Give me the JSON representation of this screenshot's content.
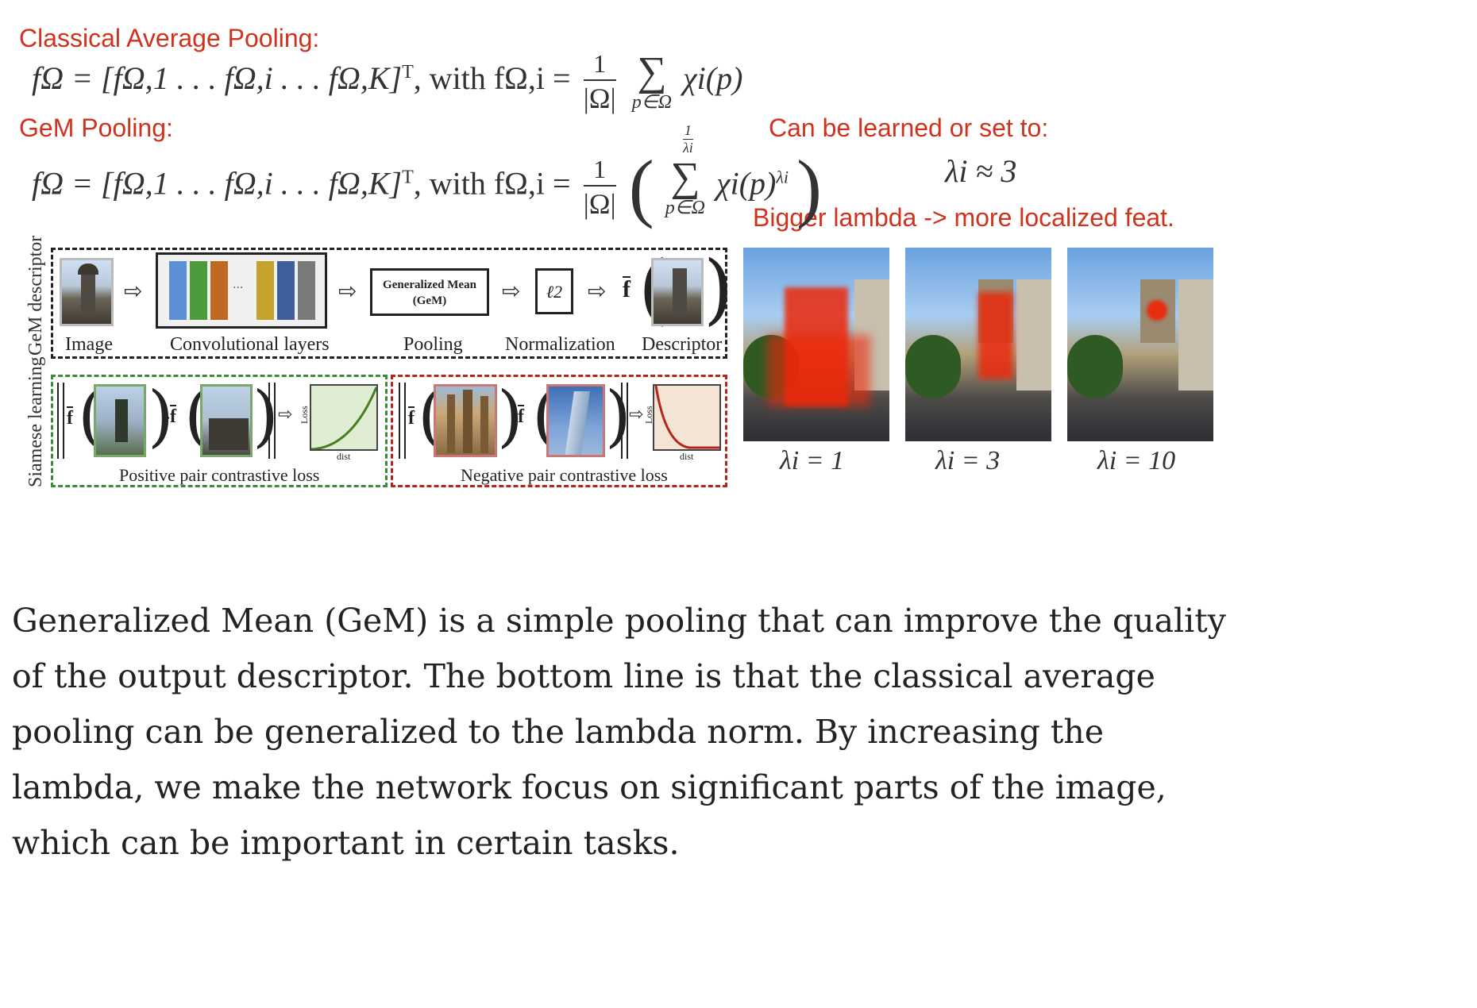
{
  "headings": {
    "classical": "Classical Average Pooling:",
    "gem": "GeM Pooling:",
    "learned": "Can be learned or set to:",
    "bigger": "Bigger lambda -> more localized feat."
  },
  "formulas": {
    "f_lhs": "fΩ = [fΩ,1 . . . fΩ,i . . . fΩ,K]",
    "transpose": "T",
    "with": ", with fΩ,i =",
    "frac_num": "1",
    "frac_den": "|Ω|",
    "sum_sub": "p∈Ω",
    "chi_p": "χi(p)",
    "chi_p_lambda": "χi(p)",
    "lambda_exp": "λi",
    "outer_exp_num": "1",
    "outer_exp_den": "λi",
    "approx": "λi ≈ 3"
  },
  "diagram": {
    "gem_descriptor": "GeM descriptor",
    "siamese_learning": "Siamese learning",
    "image": "Image",
    "conv_layers": "Convolutional layers",
    "gem_box_line1": "Generalized Mean",
    "gem_box_line2": "(GeM)",
    "pooling": "Pooling",
    "l2": "ℓ2",
    "normalization": "Normalization",
    "f_symbol": "f",
    "descriptor": "Descriptor",
    "loss": "Loss",
    "dist": "dist",
    "positive": "Positive pair contrastive loss",
    "negative": "Negative pair contrastive loss",
    "dots": "...",
    "conv_colors": [
      "#5b8fd6",
      "#4c9a3c",
      "#c06a21",
      "#c4a22b",
      "#3f5f9c",
      "#7a7a7a"
    ],
    "positive_color": "#3f8a3a",
    "negative_color": "#b5231a"
  },
  "examples": [
    {
      "label": "λi = 1",
      "lambda": 1
    },
    {
      "label": "λi = 3",
      "lambda": 3
    },
    {
      "label": "λi = 10",
      "lambda": 10
    }
  ],
  "paragraph": "Generalized Mean (GeM) is a simple pooling that can improve the quality of the output descriptor. The bottom line is that the classical average pooling can be generalized to the lambda norm. By increasing the lambda, we make the network focus on significant parts of the image, which can be important in certain tasks."
}
